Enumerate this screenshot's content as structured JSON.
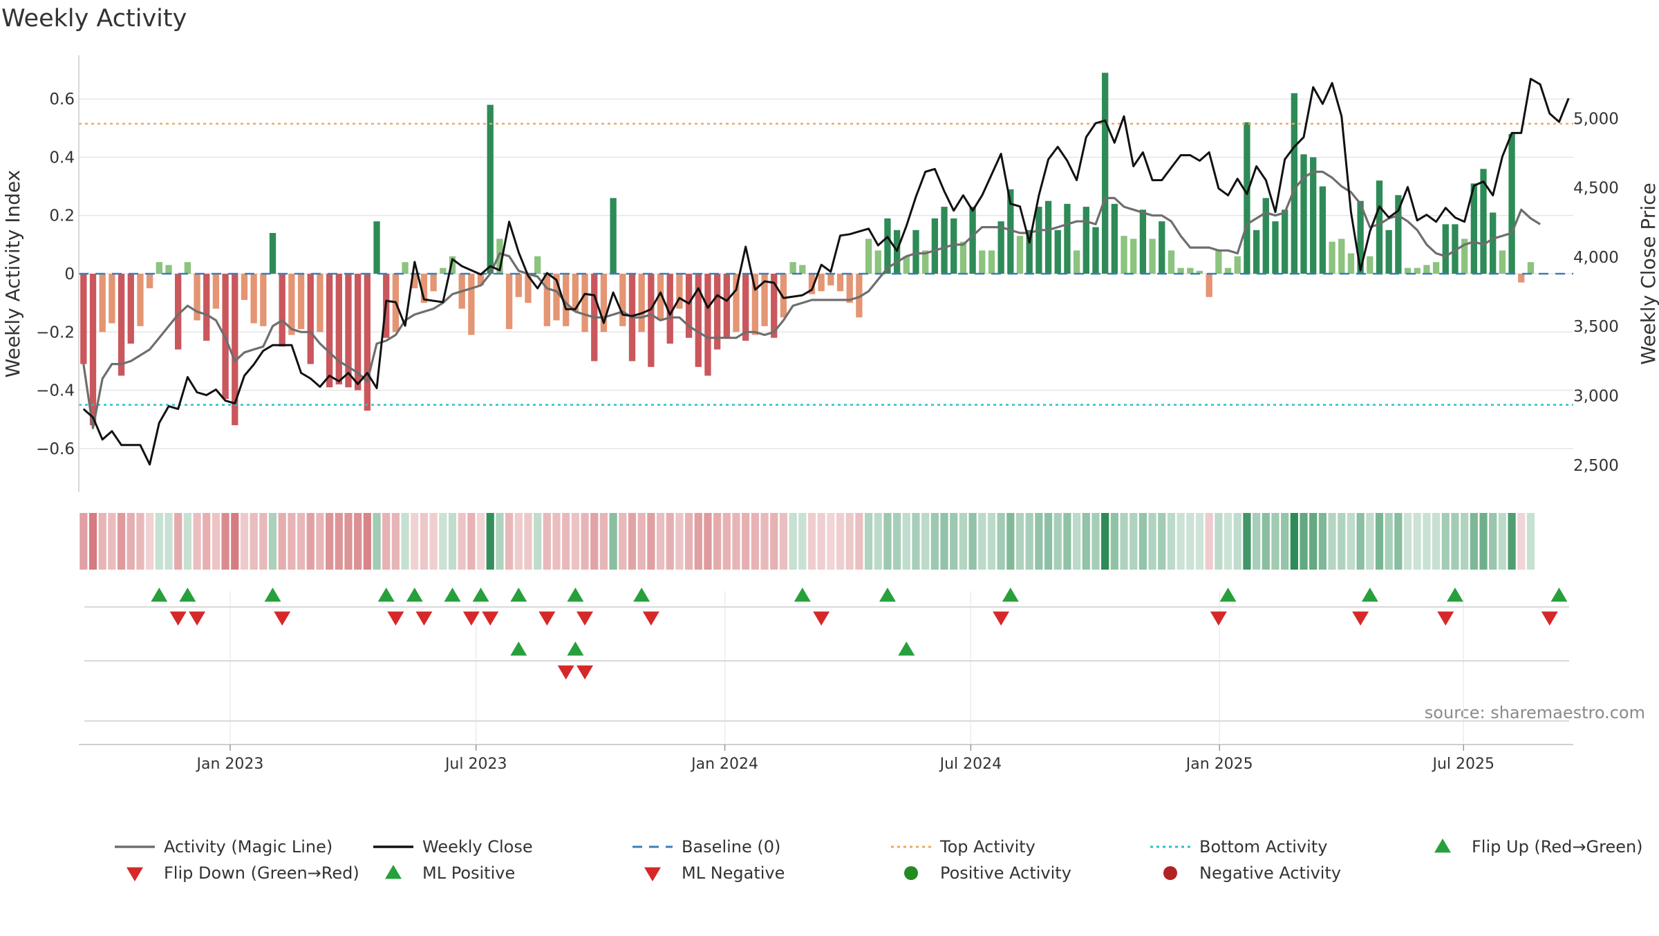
{
  "chart_data": {
    "type": "bar",
    "title": "Weekly Activity",
    "ylabel_left": "Weekly Activity Index",
    "ylabel_right": "Weekly Close Price",
    "source_text": "source: sharemaestro.com",
    "ylim_left": [
      -0.75,
      0.75
    ],
    "yticks_left": [
      0.6,
      0.4,
      0.2,
      0,
      -0.2,
      -0.4,
      -0.6
    ],
    "ytick_labels_left": [
      "0.6",
      "0.4",
      "0.2",
      "0",
      "−0.2",
      "−0.4",
      "−0.6"
    ],
    "ylim_right": [
      2300,
      5450
    ],
    "yticks_right": [
      5000,
      4500,
      4000,
      3500,
      3000,
      2500
    ],
    "ytick_labels_right": [
      "5,000",
      "4,500",
      "4,000",
      "3,500",
      "3,000",
      "2,500"
    ],
    "x_start": "2022-09-05",
    "week_count": 158,
    "x_ticks": [
      {
        "label": "Jan 2023",
        "week": 16.0
      },
      {
        "label": "Jul 2023",
        "week": 42.0
      },
      {
        "label": "Jan 2024",
        "week": 68.3
      },
      {
        "label": "Jul 2024",
        "week": 94.3
      },
      {
        "label": "Jan 2025",
        "week": 120.6
      },
      {
        "label": "Jul 2025",
        "week": 146.4
      }
    ],
    "top_activity": 0.515,
    "bottom_activity": -0.45,
    "baseline": 0,
    "activity_bars": [
      -0.31,
      -0.52,
      -0.2,
      -0.17,
      -0.35,
      -0.24,
      -0.18,
      -0.05,
      0.04,
      0.03,
      -0.26,
      0.04,
      -0.16,
      -0.23,
      -0.12,
      -0.43,
      -0.52,
      -0.09,
      -0.17,
      -0.18,
      0.14,
      -0.25,
      -0.21,
      -0.19,
      -0.31,
      -0.2,
      -0.39,
      -0.38,
      -0.39,
      -0.4,
      -0.47,
      0.18,
      -0.22,
      -0.2,
      0.04,
      -0.05,
      -0.1,
      -0.06,
      0.02,
      0.06,
      -0.12,
      -0.21,
      -0.04,
      0.58,
      0.12,
      -0.19,
      -0.08,
      -0.1,
      0.06,
      -0.18,
      -0.16,
      -0.18,
      -0.13,
      -0.2,
      -0.3,
      -0.2,
      0.26,
      -0.18,
      -0.3,
      -0.2,
      -0.32,
      -0.16,
      -0.24,
      -0.12,
      -0.22,
      -0.32,
      -0.35,
      -0.26,
      -0.22,
      -0.2,
      -0.23,
      -0.21,
      -0.18,
      -0.22,
      -0.15,
      0.04,
      0.03,
      -0.07,
      -0.06,
      -0.04,
      -0.06,
      -0.1,
      -0.15,
      0.12,
      0.08,
      0.19,
      0.15,
      0.06,
      0.15,
      0.08,
      0.19,
      0.23,
      0.19,
      0.11,
      0.23,
      0.08,
      0.08,
      0.18,
      0.29,
      0.13,
      0.15,
      0.23,
      0.25,
      0.15,
      0.24,
      0.08,
      0.23,
      0.16,
      0.69,
      0.24,
      0.13,
      0.12,
      0.22,
      0.12,
      0.18,
      0.08,
      0.02,
      0.02,
      0.01,
      -0.08,
      0.08,
      0.02,
      0.06,
      0.52,
      0.15,
      0.26,
      0.18,
      0.22,
      0.62,
      0.41,
      0.4,
      0.3,
      0.11,
      0.12,
      0.07,
      0.25,
      0.06,
      0.32,
      0.15,
      0.27,
      0.02,
      0.02,
      0.03,
      0.04,
      0.17,
      0.17,
      0.12,
      0.31,
      0.36,
      0.21,
      0.08,
      0.48,
      -0.03,
      0.04
    ],
    "weekly_close": [
      2900,
      2840,
      2680,
      2740,
      2640,
      2640,
      2640,
      2500,
      2800,
      2920,
      2900,
      3130,
      3020,
      3000,
      3040,
      2960,
      2940,
      3140,
      3220,
      3320,
      3360,
      3360,
      3360,
      3160,
      3120,
      3060,
      3140,
      3100,
      3160,
      3080,
      3160,
      3050,
      3680,
      3670,
      3500,
      3960,
      3690,
      3680,
      3670,
      3980,
      3930,
      3900,
      3870,
      3930,
      3900,
      4250,
      4030,
      3860,
      3770,
      3880,
      3830,
      3620,
      3620,
      3730,
      3720,
      3520,
      3740,
      3580,
      3570,
      3590,
      3620,
      3740,
      3580,
      3700,
      3660,
      3770,
      3630,
      3720,
      3680,
      3760,
      4070,
      3760,
      3820,
      3810,
      3700,
      3710,
      3720,
      3760,
      3940,
      3890,
      4150,
      4160,
      4180,
      4200,
      4080,
      4140,
      4040,
      4220,
      4430,
      4610,
      4630,
      4470,
      4330,
      4440,
      4330,
      4440,
      4590,
      4740,
      4380,
      4360,
      4100,
      4440,
      4700,
      4790,
      4690,
      4550,
      4860,
      4960,
      4980,
      4820,
      5010,
      4650,
      4750,
      4550,
      4550,
      4640,
      4730,
      4730,
      4690,
      4750,
      4490,
      4440,
      4560,
      4450,
      4650,
      4550,
      4320,
      4700,
      4790,
      4860,
      5220,
      5100,
      5250,
      5010,
      4320,
      3900,
      4180,
      4360,
      4280,
      4330,
      4500,
      4260,
      4300,
      4250,
      4350,
      4280,
      4250,
      4510,
      4540,
      4440,
      4720,
      4890,
      4890,
      5280,
      5240,
      5030,
      4970,
      5140
    ],
    "magic_line": [
      -0.31,
      -0.53,
      -0.36,
      -0.31,
      -0.31,
      -0.3,
      -0.28,
      -0.26,
      -0.22,
      -0.18,
      -0.14,
      -0.11,
      -0.13,
      -0.14,
      -0.16,
      -0.22,
      -0.3,
      -0.27,
      -0.26,
      -0.25,
      -0.18,
      -0.16,
      -0.19,
      -0.2,
      -0.2,
      -0.24,
      -0.27,
      -0.3,
      -0.32,
      -0.34,
      -0.37,
      -0.24,
      -0.23,
      -0.21,
      -0.16,
      -0.14,
      -0.13,
      -0.12,
      -0.1,
      -0.07,
      -0.06,
      -0.05,
      -0.04,
      0.0,
      0.07,
      0.06,
      0.01,
      0.0,
      -0.01,
      -0.05,
      -0.06,
      -0.1,
      -0.13,
      -0.14,
      -0.15,
      -0.15,
      -0.14,
      -0.13,
      -0.15,
      -0.15,
      -0.14,
      -0.16,
      -0.15,
      -0.15,
      -0.18,
      -0.2,
      -0.22,
      -0.22,
      -0.22,
      -0.22,
      -0.2,
      -0.2,
      -0.21,
      -0.2,
      -0.16,
      -0.11,
      -0.1,
      -0.09,
      -0.09,
      -0.09,
      -0.09,
      -0.09,
      -0.08,
      -0.06,
      -0.02,
      0.02,
      0.04,
      0.06,
      0.07,
      0.07,
      0.08,
      0.09,
      0.1,
      0.1,
      0.13,
      0.16,
      0.16,
      0.16,
      0.15,
      0.14,
      0.14,
      0.15,
      0.15,
      0.16,
      0.17,
      0.18,
      0.18,
      0.17,
      0.26,
      0.26,
      0.23,
      0.22,
      0.21,
      0.2,
      0.2,
      0.18,
      0.13,
      0.09,
      0.09,
      0.09,
      0.08,
      0.08,
      0.07,
      0.17,
      0.19,
      0.21,
      0.2,
      0.21,
      0.29,
      0.33,
      0.35,
      0.35,
      0.33,
      0.3,
      0.28,
      0.24,
      0.16,
      0.17,
      0.19,
      0.2,
      0.18,
      0.15,
      0.1,
      0.07,
      0.06,
      0.08,
      0.1,
      0.11,
      0.1,
      0.12,
      0.13,
      0.14,
      0.22,
      0.19,
      0.17
    ],
    "heatmap_note": "strip colored by activity sign and magnitude",
    "flip_up_weeks": [
      8,
      11,
      20,
      32,
      35,
      39,
      42,
      46,
      52,
      59,
      76,
      85,
      98,
      121,
      136,
      145,
      156
    ],
    "flip_down_weeks": [
      10,
      12,
      21,
      33,
      36,
      41,
      43,
      49,
      53,
      60,
      78,
      97,
      120,
      135,
      144,
      155
    ],
    "ml_positive_weeks": [
      46,
      52,
      87
    ],
    "ml_negative_weeks": [
      51,
      53
    ],
    "colors": {
      "strong_red": "#c9575c",
      "light_red": "#e49573",
      "strong_green": "#2e8b57",
      "light_green": "#8cc37e",
      "magic_line": "#6e6e6e",
      "close_line": "#111111",
      "baseline": "#3a7db8",
      "top_activity": "#f0a860",
      "bottom_activity": "#28c0c8",
      "flip_up": "#27a03c",
      "flip_down": "#d62828",
      "positive_dot": "#228b22",
      "negative_dot": "#b22222",
      "grid": "#e6e6e6",
      "axis_text": "#333333",
      "source_text": "#8a8a8a"
    },
    "legend": [
      {
        "label": "Activity (Magic Line)",
        "symbol": "line",
        "color": "#6e6e6e"
      },
      {
        "label": "Weekly Close",
        "symbol": "line",
        "color": "#111111"
      },
      {
        "label": "Baseline (0)",
        "symbol": "dash",
        "color": "#3a7db8"
      },
      {
        "label": "Top Activity",
        "symbol": "dot-line",
        "color": "#f0a860"
      },
      {
        "label": "Bottom Activity",
        "symbol": "dot-line",
        "color": "#28c0c8"
      },
      {
        "label": "Flip Up (Red→Green)",
        "symbol": "tri-up",
        "color": "#27a03c"
      },
      {
        "label": "Flip Down (Green→Red)",
        "symbol": "tri-down",
        "color": "#d62828"
      },
      {
        "label": "ML Positive",
        "symbol": "tri-up",
        "color": "#27a03c"
      },
      {
        "label": "ML Negative",
        "symbol": "tri-down",
        "color": "#d62828"
      },
      {
        "label": "Positive Activity",
        "symbol": "circle",
        "color": "#228b22"
      },
      {
        "label": "Negative Activity",
        "symbol": "circle",
        "color": "#b22222"
      }
    ]
  }
}
